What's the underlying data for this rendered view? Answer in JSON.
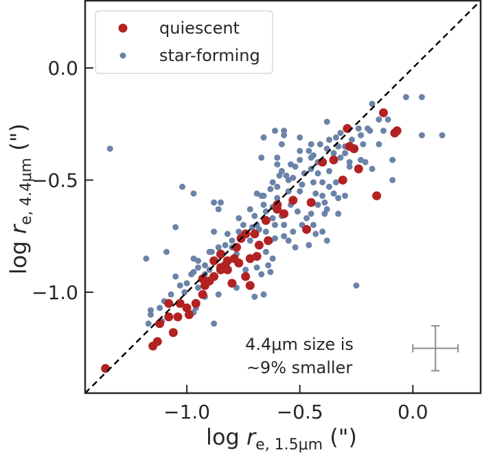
{
  "chart_data": {
    "type": "scatter",
    "xlabel": {
      "prefix": "log",
      "var": "r",
      "sub": "e, 1.5μm",
      "suffix": "(\")"
    },
    "ylabel": {
      "prefix": "log",
      "var": "r",
      "sub": "e, 4.4μm",
      "suffix": "(\")"
    },
    "xlim": [
      -1.45,
      0.3
    ],
    "ylim": [
      -1.45,
      0.3
    ],
    "xticks": [
      -1.0,
      -0.5,
      0.0
    ],
    "xtick_labels": [
      "−1.0",
      "−0.5",
      "0.0"
    ],
    "yticks": [
      0.0,
      -0.5,
      -1.0
    ],
    "ytick_labels": [
      "0.0",
      "−0.5",
      "−1.0"
    ],
    "grid": false,
    "legend_position": "top-left",
    "reference_line": {
      "type": "one-to-one",
      "style": "dashed",
      "color": "#000000"
    },
    "annotation": [
      "4.4μm size is",
      "~9% smaller"
    ],
    "typical_error": {
      "x": 0.1,
      "y": -1.25,
      "xerr": 0.1,
      "yerr": 0.1,
      "color": "#8c8c8c"
    },
    "series": [
      {
        "name": "star-forming",
        "color": "#6b83a8",
        "points": [
          [
            -0.03,
            -0.13
          ],
          [
            0.04,
            -0.13
          ],
          [
            -0.18,
            -0.16
          ],
          [
            -0.15,
            -0.23
          ],
          [
            -0.11,
            -0.23
          ],
          [
            -0.38,
            -0.24
          ],
          [
            -0.61,
            -0.28
          ],
          [
            -0.57,
            -0.28
          ],
          [
            -0.57,
            -0.3
          ],
          [
            -0.66,
            -0.31
          ],
          [
            -0.5,
            -0.31
          ],
          [
            -0.58,
            -0.34
          ],
          [
            -0.45,
            -0.34
          ],
          [
            -0.41,
            -0.34
          ],
          [
            -0.37,
            -0.32
          ],
          [
            -0.34,
            -0.31
          ],
          [
            -0.32,
            -0.29
          ],
          [
            -0.24,
            -0.27
          ],
          [
            -0.2,
            -0.27
          ],
          [
            -0.19,
            -0.28
          ],
          [
            -0.13,
            -0.28
          ],
          [
            -0.23,
            -0.3
          ],
          [
            -0.27,
            -0.32
          ],
          [
            -0.22,
            -0.34
          ],
          [
            -0.15,
            -0.34
          ],
          [
            0.04,
            -0.3
          ],
          [
            0.13,
            -0.3
          ],
          [
            -0.09,
            -0.41
          ],
          [
            -0.18,
            -0.45
          ],
          [
            -0.09,
            -0.5
          ],
          [
            -0.21,
            -0.42
          ],
          [
            -0.23,
            -0.41
          ],
          [
            -0.5,
            -0.37
          ],
          [
            -0.46,
            -0.37
          ],
          [
            -0.67,
            -0.4
          ],
          [
            -0.6,
            -0.4
          ],
          [
            -0.6,
            -0.43
          ],
          [
            -0.5,
            -0.41
          ],
          [
            -0.45,
            -0.4
          ],
          [
            -0.44,
            -0.39
          ],
          [
            -0.38,
            -0.36
          ],
          [
            -0.33,
            -0.35
          ],
          [
            -0.3,
            -0.38
          ],
          [
            -0.32,
            -0.4
          ],
          [
            -0.28,
            -0.42
          ],
          [
            -0.28,
            -0.44
          ],
          [
            -0.37,
            -0.46
          ],
          [
            -0.42,
            -0.47
          ],
          [
            -0.45,
            -0.45
          ],
          [
            -0.52,
            -0.44
          ],
          [
            -0.54,
            -0.43
          ],
          [
            -0.58,
            -0.46
          ],
          [
            -0.56,
            -0.48
          ],
          [
            -0.53,
            -0.49
          ],
          [
            -0.49,
            -0.52
          ],
          [
            -0.44,
            -0.51
          ],
          [
            -0.4,
            -0.51
          ],
          [
            -0.34,
            -0.51
          ],
          [
            -0.37,
            -0.53
          ],
          [
            -0.43,
            -0.56
          ],
          [
            -0.4,
            -0.57
          ],
          [
            -0.35,
            -0.56
          ],
          [
            -0.33,
            -0.58
          ],
          [
            -0.3,
            -0.57
          ],
          [
            -0.39,
            -0.6
          ],
          [
            -0.42,
            -0.61
          ],
          [
            -0.38,
            -0.63
          ],
          [
            -0.33,
            -0.65
          ],
          [
            -0.45,
            -0.65
          ],
          [
            -0.51,
            -0.64
          ],
          [
            -0.54,
            -0.61
          ],
          [
            -0.63,
            -0.54
          ],
          [
            -0.66,
            -0.57
          ],
          [
            -0.62,
            -0.51
          ],
          [
            -0.59,
            -0.48
          ],
          [
            -0.47,
            -0.67
          ],
          [
            -0.39,
            -0.65
          ],
          [
            -0.44,
            -0.7
          ],
          [
            -0.49,
            -0.7
          ],
          [
            -0.43,
            -0.74
          ],
          [
            -0.4,
            -0.73
          ],
          [
            -0.38,
            -0.77
          ],
          [
            -0.46,
            -0.79
          ],
          [
            -0.52,
            -0.8
          ],
          [
            -0.55,
            -0.77
          ],
          [
            -0.57,
            -0.75
          ],
          [
            -0.53,
            -0.73
          ],
          [
            -0.57,
            -0.7
          ],
          [
            -0.61,
            -0.7
          ],
          [
            -0.58,
            -0.66
          ],
          [
            -0.62,
            -0.62
          ],
          [
            -0.66,
            -0.61
          ],
          [
            -0.65,
            -0.73
          ],
          [
            -0.61,
            -0.76
          ],
          [
            -0.97,
            -0.56
          ],
          [
            -0.88,
            -0.6
          ],
          [
            -0.85,
            -0.6
          ],
          [
            -0.86,
            -0.63
          ],
          [
            -1.05,
            -0.71
          ],
          [
            -1.09,
            -0.82
          ],
          [
            -1.18,
            -0.85
          ],
          [
            -0.88,
            -0.73
          ],
          [
            -0.77,
            -0.67
          ],
          [
            -0.72,
            -0.63
          ],
          [
            -0.69,
            -0.56
          ],
          [
            -0.67,
            -0.57
          ],
          [
            -0.97,
            -0.85
          ],
          [
            -0.95,
            -0.86
          ],
          [
            -0.89,
            -0.82
          ],
          [
            -0.86,
            -0.8
          ],
          [
            -0.82,
            -0.74
          ],
          [
            -0.8,
            -0.77
          ],
          [
            -0.83,
            -0.79
          ],
          [
            -0.77,
            -0.73
          ],
          [
            -0.71,
            -0.71
          ],
          [
            -0.69,
            -0.7
          ],
          [
            -0.63,
            -0.77
          ],
          [
            -0.65,
            -0.82
          ],
          [
            -0.62,
            -0.85
          ],
          [
            -0.69,
            -0.89
          ],
          [
            -0.64,
            -0.88
          ],
          [
            -0.67,
            -0.92
          ],
          [
            -0.63,
            -0.91
          ],
          [
            -0.66,
            -1.01
          ],
          [
            -0.7,
            -1.02
          ],
          [
            -0.78,
            -0.98
          ],
          [
            -0.74,
            -0.9
          ],
          [
            -0.86,
            -1.01
          ],
          [
            -0.92,
            -1.02
          ],
          [
            -0.95,
            -0.98
          ],
          [
            -0.97,
            -0.91
          ],
          [
            -1.0,
            -0.96
          ],
          [
            -1.03,
            -0.97
          ],
          [
            -1.05,
            -0.93
          ],
          [
            -1.01,
            -1.0
          ],
          [
            -1.07,
            -1.01
          ],
          [
            -1.1,
            -1.04
          ],
          [
            -1.12,
            -1.07
          ],
          [
            -1.16,
            -1.08
          ],
          [
            -1.16,
            -1.1
          ],
          [
            -1.17,
            -1.14
          ],
          [
            -1.11,
            -1.13
          ],
          [
            -0.96,
            -1.07
          ],
          [
            -0.97,
            -1.09
          ],
          [
            -0.88,
            -1.14
          ],
          [
            -0.92,
            -0.92
          ],
          [
            -0.9,
            -0.9
          ],
          [
            -0.92,
            -0.88
          ],
          [
            -0.88,
            -0.86
          ],
          [
            -0.95,
            -0.89
          ],
          [
            -0.98,
            -0.92
          ],
          [
            -1.34,
            -0.36
          ],
          [
            -0.25,
            -0.97
          ],
          [
            -1.02,
            -0.53
          ],
          [
            -0.55,
            -0.55
          ],
          [
            -0.5,
            -0.55
          ],
          [
            -0.6,
            -0.58
          ],
          [
            -0.7,
            -0.66
          ],
          [
            -0.75,
            -0.7
          ],
          [
            -0.65,
            -0.64
          ],
          [
            -0.8,
            -0.8
          ],
          [
            -0.72,
            -0.77
          ],
          [
            -0.48,
            -0.47
          ],
          [
            -0.42,
            -0.42
          ],
          [
            -0.35,
            -0.38
          ],
          [
            -0.3,
            -0.35
          ],
          [
            -0.55,
            -0.5
          ],
          [
            -0.62,
            -0.67
          ],
          [
            -0.68,
            -0.72
          ],
          [
            -0.78,
            -0.83
          ],
          [
            -0.9,
            -0.82
          ],
          [
            -0.6,
            -0.53
          ]
        ]
      },
      {
        "name": "quiescent",
        "color": "#b22222",
        "points": [
          [
            -1.15,
            -1.24
          ],
          [
            -1.13,
            -1.22
          ],
          [
            -1.06,
            -1.18
          ],
          [
            -1.12,
            -1.14
          ],
          [
            -1.08,
            -1.11
          ],
          [
            -1.04,
            -1.11
          ],
          [
            -0.99,
            -1.1
          ],
          [
            -1.08,
            -1.05
          ],
          [
            -1.03,
            -1.05
          ],
          [
            -1.0,
            -1.07
          ],
          [
            -0.96,
            -1.05
          ],
          [
            -0.93,
            -1.01
          ],
          [
            -0.93,
            -0.94
          ],
          [
            -0.9,
            -0.95
          ],
          [
            -0.88,
            -0.93
          ],
          [
            -0.85,
            -0.9
          ],
          [
            -0.83,
            -0.88
          ],
          [
            -0.82,
            -0.86
          ],
          [
            -0.79,
            -0.85
          ],
          [
            -0.77,
            -0.87
          ],
          [
            -0.8,
            -0.96
          ],
          [
            -0.74,
            -0.93
          ],
          [
            -0.72,
            -0.97
          ],
          [
            -0.72,
            -0.85
          ],
          [
            -0.78,
            -0.8
          ],
          [
            -0.76,
            -0.76
          ],
          [
            -0.74,
            -0.74
          ],
          [
            -0.7,
            -0.74
          ],
          [
            -0.68,
            -0.79
          ],
          [
            -0.64,
            -0.77
          ],
          [
            -0.65,
            -0.68
          ],
          [
            -0.69,
            -0.84
          ],
          [
            -0.85,
            -0.89
          ],
          [
            -0.82,
            -0.9
          ],
          [
            -0.13,
            -0.2
          ],
          [
            -0.29,
            -0.27
          ],
          [
            -0.08,
            -0.29
          ],
          [
            -0.07,
            -0.28
          ],
          [
            -0.28,
            -0.35
          ],
          [
            -0.26,
            -0.36
          ],
          [
            -0.4,
            -0.42
          ],
          [
            -0.35,
            -0.41
          ],
          [
            -0.24,
            -0.45
          ],
          [
            -0.31,
            -0.5
          ],
          [
            -0.16,
            -0.57
          ],
          [
            -0.53,
            -0.59
          ],
          [
            -0.45,
            -0.6
          ],
          [
            -0.6,
            -0.61
          ],
          [
            -0.6,
            -0.63
          ],
          [
            -0.57,
            -0.65
          ],
          [
            -0.47,
            -0.72
          ],
          [
            -1.36,
            -1.34
          ],
          [
            -0.85,
            -0.83
          ],
          [
            -0.88,
            -0.86
          ],
          [
            -0.92,
            -0.97
          ]
        ]
      }
    ]
  }
}
